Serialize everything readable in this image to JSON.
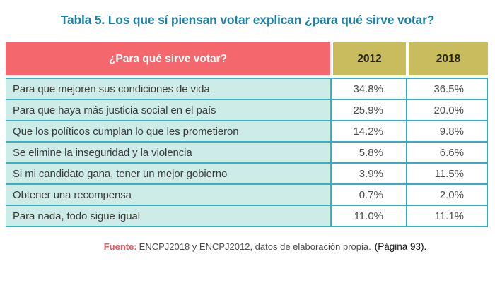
{
  "title": "Tabla 5. Los que sí piensan votar explican ¿para qué sirve votar?",
  "table": {
    "header": {
      "question": "¿Para qué sirve votar?",
      "col2012": "2012",
      "col2018": "2018"
    },
    "rows": [
      {
        "label": "Para que mejoren sus condiciones de vida",
        "v2012": "34.8%",
        "v2018": "36.5%"
      },
      {
        "label": "Para que haya más justicia social en el país",
        "v2012": "25.9%",
        "v2018": "20.0%"
      },
      {
        "label": "Que los políticos cumplan lo que les prometieron",
        "v2012": "14.2%",
        "v2018": "9.8%"
      },
      {
        "label": "Se elimine la inseguridad y la violencia",
        "v2012": "5.8%",
        "v2018": "6.6%"
      },
      {
        "label": "Si mi candidato gana, tener un mejor gobierno",
        "v2012": "3.9%",
        "v2018": "11.5%"
      },
      {
        "label": "Obtener una recompensa",
        "v2012": "0.7%",
        "v2018": "2.0%"
      },
      {
        "label": "Para nada, todo sigue igual",
        "v2012": "11.0%",
        "v2018": "11.1%"
      }
    ]
  },
  "footer": {
    "source_label": "Fuente:",
    "source_text": "ENCPJ2018 y ENCPJ2012, datos de elaboración propia.",
    "page_ref": "(Página 93)."
  },
  "chart_data": {
    "type": "table",
    "title": "Tabla 5. Los que sí piensan votar explican ¿para qué sirve votar?",
    "columns": [
      "¿Para qué sirve votar?",
      "2012",
      "2018"
    ],
    "categories": [
      "Para que mejoren sus condiciones de vida",
      "Para que haya más justicia social en el país",
      "Que los políticos cumplan lo que les prometieron",
      "Se elimine la inseguridad y la violencia",
      "Si mi candidato gana, tener un mejor gobierno",
      "Obtener una recompensa",
      "Para nada, todo sigue igual"
    ],
    "series": [
      {
        "name": "2012",
        "values": [
          34.8,
          25.9,
          14.2,
          5.8,
          3.9,
          0.7,
          11.0
        ]
      },
      {
        "name": "2018",
        "values": [
          36.5,
          20.0,
          9.8,
          6.6,
          11.5,
          2.0,
          11.1
        ]
      }
    ],
    "value_unit": "%",
    "source": "Fuente: ENCPJ2018 y ENCPJ2012, datos de elaboración propia. (Página 93)."
  },
  "colors": {
    "title_blue": "#1d81a3",
    "header_red": "#f4676c",
    "header_gold": "#c9bc5f",
    "header_text_dark": "#26261e",
    "row_mint": "#cdebe7",
    "border_teal": "#38aec0",
    "text_dark": "#3b3b3b",
    "value_text": "#4c4c4c",
    "source_red": "#f0535a",
    "footer_gray": "#4a4a4a",
    "pageref_black": "#141414"
  }
}
